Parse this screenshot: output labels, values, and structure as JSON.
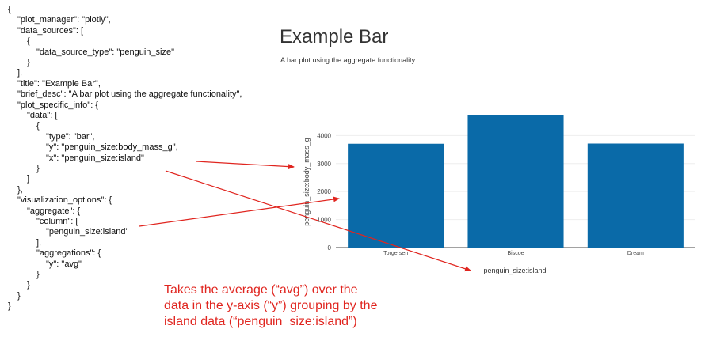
{
  "json_lines": [
    {
      "indent": 0,
      "text": "{"
    },
    {
      "indent": 1,
      "text": "\"plot_manager\": \"plotly\","
    },
    {
      "indent": 1,
      "text": "\"data_sources\": ["
    },
    {
      "indent": 2,
      "text": "{"
    },
    {
      "indent": 3,
      "text": "\"data_source_type\": \"penguin_size\""
    },
    {
      "indent": 2,
      "text": "}"
    },
    {
      "indent": 1,
      "text": "],"
    },
    {
      "indent": 1,
      "text": "\"title\": \"Example Bar\","
    },
    {
      "indent": 1,
      "text": "\"brief_desc\": \"A bar plot using the aggregate functionality\","
    },
    {
      "indent": 1,
      "text": "\"plot_specific_info\": {"
    },
    {
      "indent": 2,
      "text": "\"data\": ["
    },
    {
      "indent": 3,
      "text": "{"
    },
    {
      "indent": 4,
      "text": "\"type\": \"bar\","
    },
    {
      "indent": 4,
      "text": "\"y\": \"penguin_size:body_mass_g\","
    },
    {
      "indent": 4,
      "text": "\"x\": \"penguin_size:island\""
    },
    {
      "indent": 3,
      "text": "}"
    },
    {
      "indent": 2,
      "text": "]"
    },
    {
      "indent": 1,
      "text": "},"
    },
    {
      "indent": 1,
      "text": "\"visualization_options\": {"
    },
    {
      "indent": 2,
      "text": "\"aggregate\": {"
    },
    {
      "indent": 3,
      "text": "\"column\": ["
    },
    {
      "indent": 4,
      "text": "\"penguin_size:island\""
    },
    {
      "indent": 3,
      "text": "],"
    },
    {
      "indent": 3,
      "text": "\"aggregations\": {"
    },
    {
      "indent": 4,
      "text": "\"y\": \"avg\""
    },
    {
      "indent": 3,
      "text": "}"
    },
    {
      "indent": 2,
      "text": "}"
    },
    {
      "indent": 1,
      "text": "}"
    },
    {
      "indent": 0,
      "text": "}"
    }
  ],
  "plot": {
    "title": "Example Bar",
    "description": "A bar plot using the aggregate functionality"
  },
  "chart_data": {
    "type": "bar",
    "categories": [
      "Torgersen",
      "Biscoe",
      "Dream"
    ],
    "values": [
      3706,
      4716,
      3713
    ],
    "xlabel": "penguin_size:island",
    "ylabel": "penguin_size:body_mass_g",
    "ylim": [
      0,
      4800
    ],
    "yticks": [
      0,
      1000,
      2000,
      3000,
      4000
    ],
    "ytick_labels": [
      "0",
      "1000",
      "2000",
      "3000",
      "4000"
    ],
    "bar_color": "#0a6aa8",
    "grid": true
  },
  "annotation": {
    "lines": [
      "Takes the average (“avg”) over the",
      "data in the y-axis (“y”) grouping by the",
      "island data (“penguin_size:island”)"
    ],
    "color": "#e0251f"
  }
}
